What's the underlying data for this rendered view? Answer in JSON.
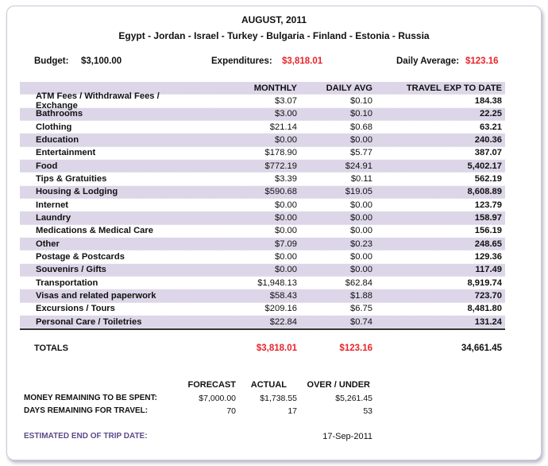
{
  "header": {
    "title": "AUGUST, 2011",
    "countries": "Egypt - Jordan - Israel - Turkey - Bulgaria - Finland - Estonia - Russia"
  },
  "summary": {
    "budget_label": "Budget:",
    "budget": "$3,100.00",
    "expenditures_label": "Expenditures:",
    "expenditures": "$3,818.01",
    "daily_label": "Daily Average:",
    "daily": "$123.16"
  },
  "table": {
    "columns": [
      "",
      "MONTHLY",
      "DAILY AVG",
      "TRAVEL EXP TO DATE"
    ],
    "rows": [
      [
        "ATM Fees / Withdrawal Fees / Exchange",
        "$3.07",
        "$0.10",
        "184.38"
      ],
      [
        "Bathrooms",
        "$3.00",
        "$0.10",
        "22.25"
      ],
      [
        "Clothing",
        "$21.14",
        "$0.68",
        "63.21"
      ],
      [
        "Education",
        "$0.00",
        "$0.00",
        "240.36"
      ],
      [
        "Entertainment",
        "$178.90",
        "$5.77",
        "387.07"
      ],
      [
        "Food",
        "$772.19",
        "$24.91",
        "5,402.17"
      ],
      [
        "Tips & Gratuities",
        "$3.39",
        "$0.11",
        "562.19"
      ],
      [
        "Housing & Lodging",
        "$590.68",
        "$19.05",
        "8,608.89"
      ],
      [
        "Internet",
        "$0.00",
        "$0.00",
        "123.79"
      ],
      [
        "Laundry",
        "$0.00",
        "$0.00",
        "158.97"
      ],
      [
        "Medications & Medical Care",
        "$0.00",
        "$0.00",
        "156.19"
      ],
      [
        "Other",
        "$7.09",
        "$0.23",
        "248.65"
      ],
      [
        "Postage & Postcards",
        "$0.00",
        "$0.00",
        "129.36"
      ],
      [
        "Souvenirs / Gifts",
        "$0.00",
        "$0.00",
        "117.49"
      ],
      [
        "Transportation",
        "$1,948.13",
        "$62.84",
        "8,919.74"
      ],
      [
        "Visas  and related paperwork",
        "$58.43",
        "$1.88",
        "723.70"
      ],
      [
        "Excursions / Tours",
        "$209.16",
        "$6.75",
        "8,481.80"
      ],
      [
        "Personal Care / Toiletries",
        "$22.84",
        "$0.74",
        "131.24"
      ]
    ]
  },
  "totals": {
    "label": "TOTALS",
    "monthly": "$3,818.01",
    "daily": "$123.16",
    "to_date": "34,661.45"
  },
  "forecast": {
    "headers": [
      "FORECAST",
      "ACTUAL",
      "OVER / UNDER"
    ],
    "money_label": "MONEY REMAINING TO BE SPENT:",
    "money": [
      "$7,000.00",
      "$1,738.55",
      "$5,261.45"
    ],
    "days_label": "DAYS REMAINING FOR TRAVEL:",
    "days": [
      "70",
      "17",
      "53"
    ],
    "end_label": "ESTIMATED END OF TRIP DATE:",
    "end_date": "17-Sep-2011"
  },
  "colors": {
    "accent_red": "#e8242a",
    "row_shade": "#dcd6e8",
    "end_label": "#5b4b8a"
  }
}
